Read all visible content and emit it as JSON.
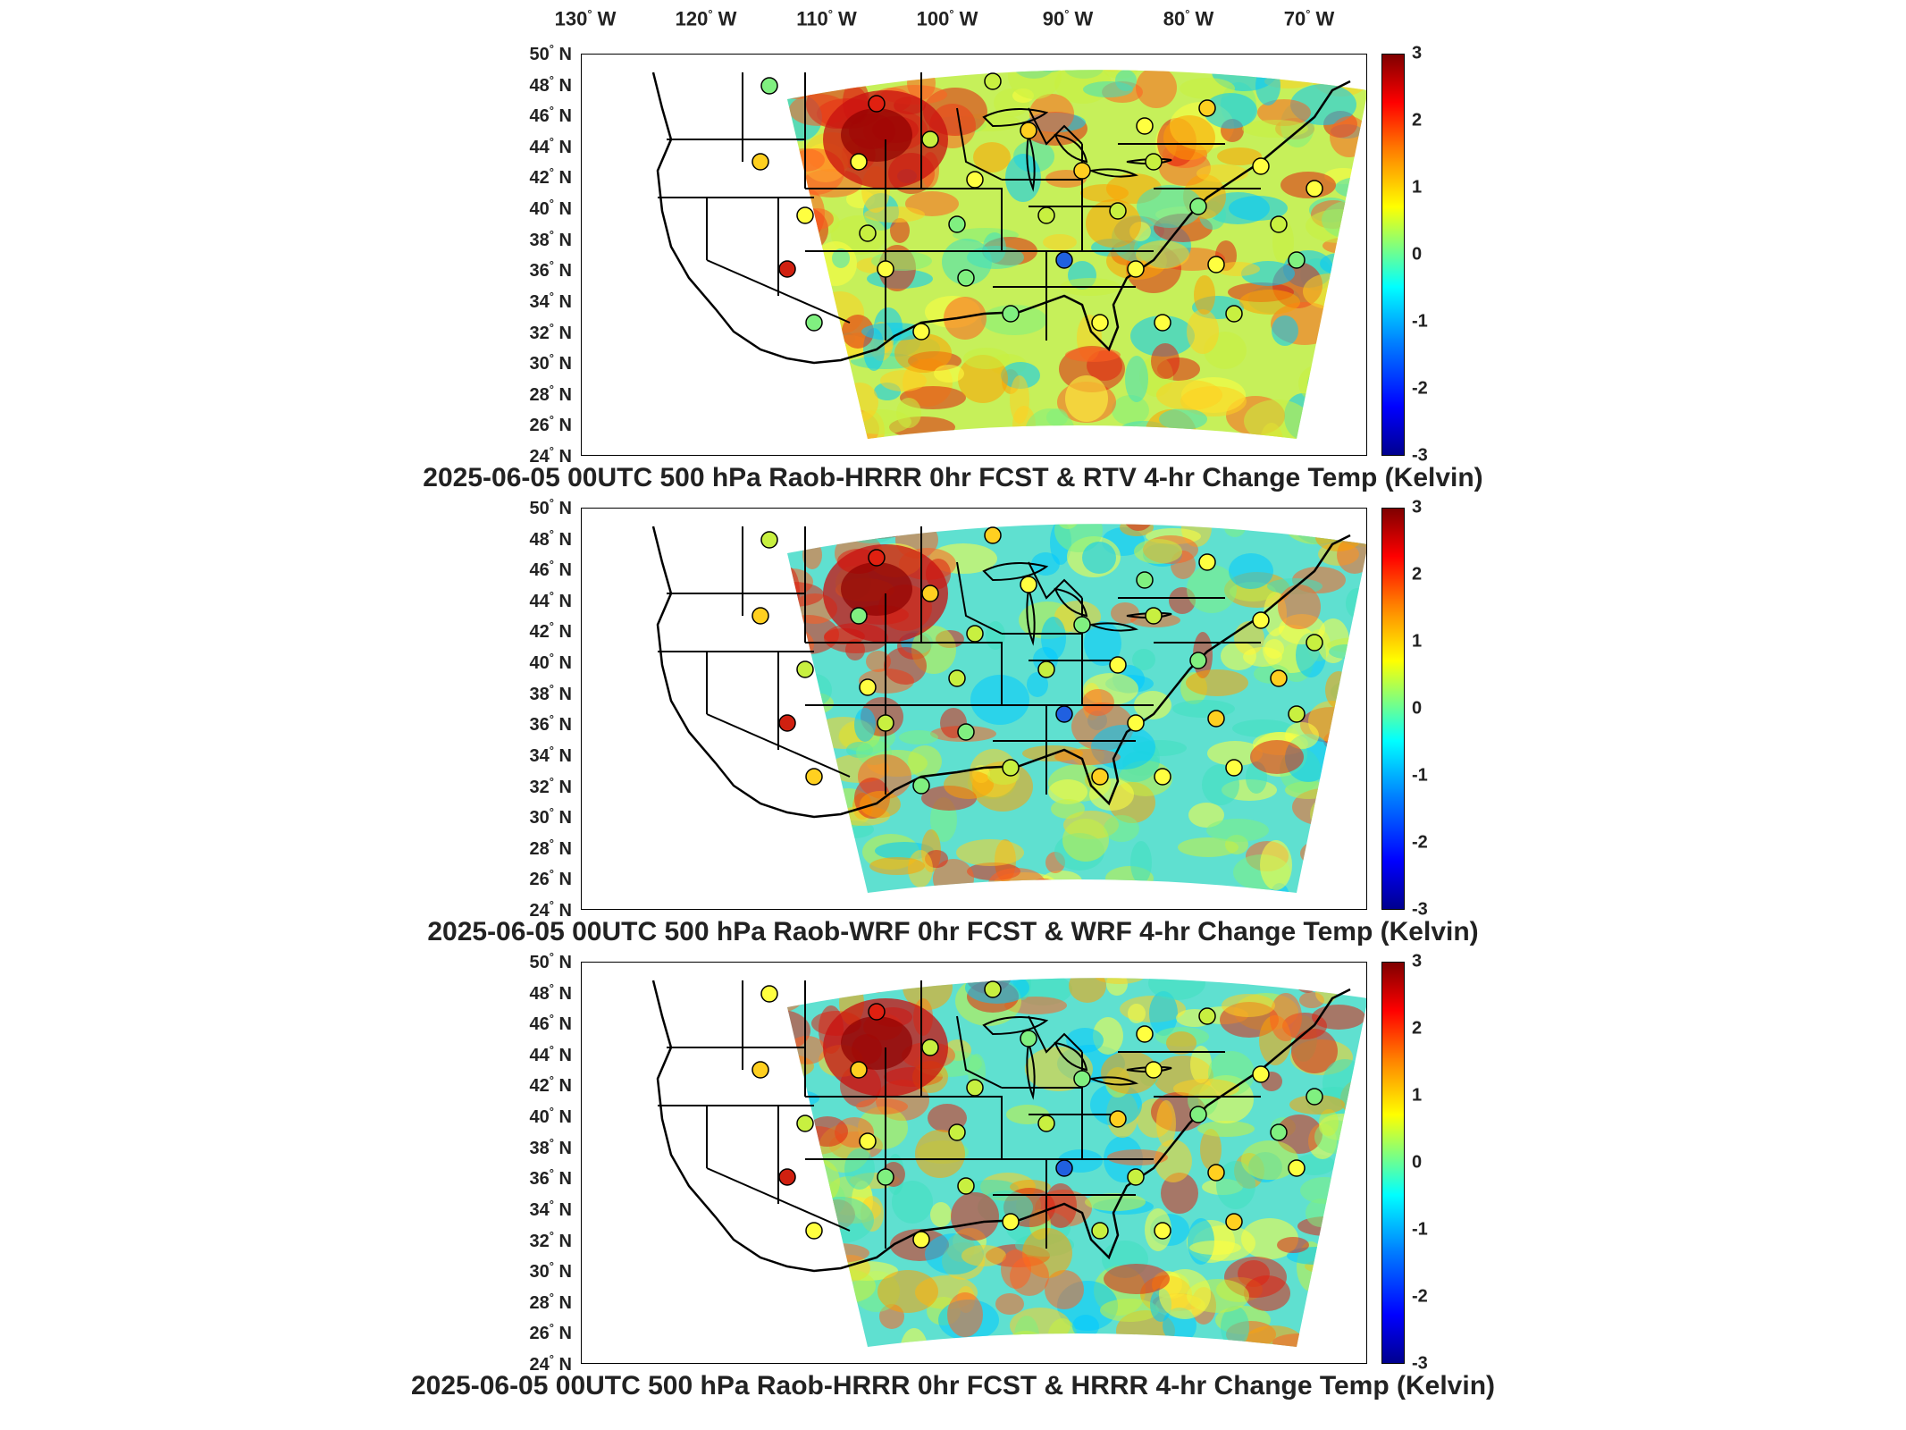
{
  "figure": {
    "longitude_labels": [
      "130",
      "120",
      "110",
      "100",
      "90",
      "80",
      "70"
    ],
    "longitude_suffix": "W",
    "latitude_labels": [
      "50",
      "48",
      "46",
      "44",
      "42",
      "40",
      "38",
      "36",
      "34",
      "32",
      "30",
      "28",
      "26",
      "24"
    ],
    "latitude_suffix": "N",
    "colorbar": {
      "ticks": [
        "3",
        "2",
        "1",
        "0",
        "-1",
        "-2",
        "-3"
      ],
      "range": [
        -3,
        3
      ],
      "colors": [
        "#00008f",
        "#0000ff",
        "#007fff",
        "#00ffff",
        "#7fff7f",
        "#ffff00",
        "#ff7f00",
        "#ff0000",
        "#7f0000"
      ]
    }
  },
  "panels": [
    {
      "title": "2025-06-05 00UTC 500 hPa Raob-HRRR 0hr FCST & RTV 4-hr Change Temp (Kelvin)"
    },
    {
      "title": "2025-06-05 00UTC 500 hPa Raob-WRF 0hr FCST & WRF 4-hr Change Temp (Kelvin)"
    },
    {
      "title": "2025-06-05 00UTC 500 hPa Raob-HRRR 0hr FCST & HRRR 4-hr Change Temp (Kelvin)"
    }
  ]
}
